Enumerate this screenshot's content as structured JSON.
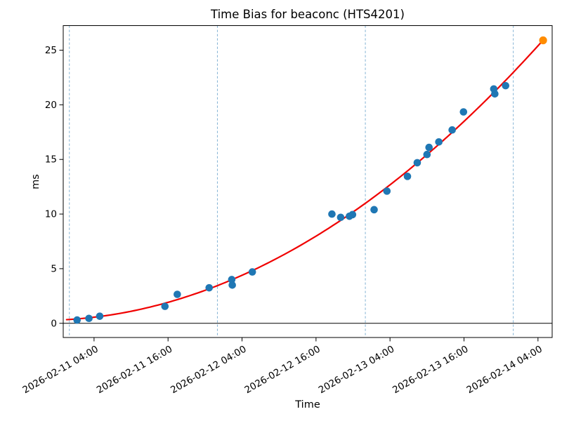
{
  "chart_data": {
    "type": "scatter",
    "title": "Time Bias for beaconc (HTS4201)",
    "xlabel": "Time",
    "ylabel": "ms",
    "x_axis": {
      "epoch": "2026-02-11 00:00",
      "unit": "hours since epoch",
      "xlim_hours": [
        -1.0,
        78.3
      ],
      "tick_hours": [
        4,
        16,
        28,
        40,
        52,
        64,
        76
      ],
      "tick_labels": [
        "2026-02-11 04:00",
        "2026-02-11 16:00",
        "2026-02-12 04:00",
        "2026-02-12 16:00",
        "2026-02-13 04:00",
        "2026-02-13 16:00",
        "2026-02-14 04:00"
      ],
      "day_gridlines_hours": [
        0,
        24,
        48,
        72
      ],
      "day_gridlines_labels": [
        "2026-02-11 00:00",
        "2026-02-12 00:00",
        "2026-02-13 00:00",
        "2026-02-14 00:00"
      ]
    },
    "y_axis": {
      "ylim": [
        -1.3,
        27.25
      ],
      "ticks": [
        0,
        5,
        10,
        15,
        20,
        25
      ]
    },
    "grid": "vertical dashed lines at day boundaries only",
    "legend": "none",
    "zero_line": 0,
    "series": [
      {
        "name": "observations",
        "marker": "circle",
        "color": "#1f77b4",
        "points": [
          {
            "time": "2026-02-11 01:15",
            "hours": 1.25,
            "ms": 0.3
          },
          {
            "time": "2026-02-11 03:10",
            "hours": 3.17,
            "ms": 0.45
          },
          {
            "time": "2026-02-11 04:55",
            "hours": 4.92,
            "ms": 0.65
          },
          {
            "time": "2026-02-11 15:30",
            "hours": 15.5,
            "ms": 1.55
          },
          {
            "time": "2026-02-11 17:30",
            "hours": 17.5,
            "ms": 2.65
          },
          {
            "time": "2026-02-11 22:40",
            "hours": 22.67,
            "ms": 3.25
          },
          {
            "time": "2026-02-12 02:20",
            "hours": 26.33,
            "ms": 4.0
          },
          {
            "time": "2026-02-12 02:25",
            "hours": 26.42,
            "ms": 3.5
          },
          {
            "time": "2026-02-12 05:40",
            "hours": 29.67,
            "ms": 4.7
          },
          {
            "time": "2026-02-12 18:35",
            "hours": 42.58,
            "ms": 10.0
          },
          {
            "time": "2026-02-12 20:00",
            "hours": 44.0,
            "ms": 9.7
          },
          {
            "time": "2026-02-12 21:25",
            "hours": 45.42,
            "ms": 9.8
          },
          {
            "time": "2026-02-12 21:55",
            "hours": 45.92,
            "ms": 9.95
          },
          {
            "time": "2026-02-13 01:25",
            "hours": 49.42,
            "ms": 10.4
          },
          {
            "time": "2026-02-13 03:30",
            "hours": 51.5,
            "ms": 12.1
          },
          {
            "time": "2026-02-13 06:50",
            "hours": 54.83,
            "ms": 13.45
          },
          {
            "time": "2026-02-13 08:25",
            "hours": 56.42,
            "ms": 14.7
          },
          {
            "time": "2026-02-13 10:00",
            "hours": 58.0,
            "ms": 15.45
          },
          {
            "time": "2026-02-13 10:20",
            "hours": 58.33,
            "ms": 16.1
          },
          {
            "time": "2026-02-13 11:55",
            "hours": 59.92,
            "ms": 16.6
          },
          {
            "time": "2026-02-13 14:05",
            "hours": 62.08,
            "ms": 17.7
          },
          {
            "time": "2026-02-13 15:55",
            "hours": 63.92,
            "ms": 19.35
          },
          {
            "time": "2026-02-13 20:50",
            "hours": 68.83,
            "ms": 21.45
          },
          {
            "time": "2026-02-13 21:00",
            "hours": 69.0,
            "ms": 21.0
          },
          {
            "time": "2026-02-13 22:45",
            "hours": 70.75,
            "ms": 21.75
          }
        ]
      },
      {
        "name": "highlighted-endpoint",
        "marker": "circle",
        "color": "#ff8c00",
        "points": [
          {
            "time": "2026-02-14 04:50",
            "hours": 76.83,
            "ms": 25.9
          }
        ]
      }
    ],
    "fit_curve": {
      "name": "quadratic-fit",
      "color": "#f00000",
      "coeffs_quadratic": [
        0.35,
        0.03639,
        0.003858
      ],
      "t_range_hours": [
        -0.45,
        76.83
      ],
      "sample_values_every_4h": [
        0.33,
        0.35,
        0.56,
        0.89,
        1.34,
        1.92,
        2.62,
        3.45,
        4.39,
        5.47,
        6.66,
        7.98,
        9.42,
        10.99,
        12.67,
        14.49,
        16.42,
        18.48,
        20.66,
        22.97,
        25.41
      ]
    },
    "colors": {
      "point": "#1f77b4",
      "highlight_point": "#ff8c00",
      "fit_line": "#f00000",
      "day_gridline": "#74a9cf",
      "axis": "#000000",
      "background": "#ffffff"
    }
  }
}
